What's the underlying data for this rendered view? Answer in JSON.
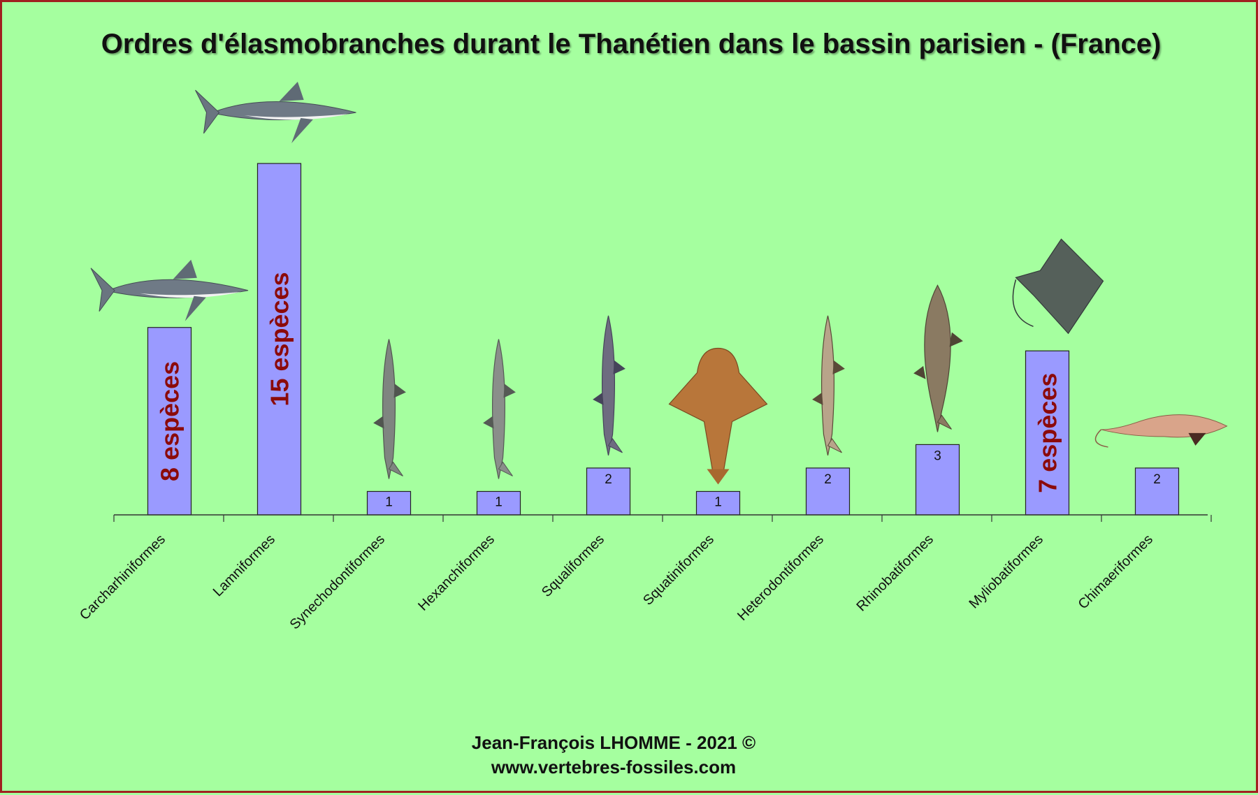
{
  "chart_data": {
    "type": "bar",
    "title": "Ordres d'élasmobranches durant le Thanétien dans le bassin parisien - (France)",
    "xlabel": "",
    "ylabel": "",
    "ylim": [
      0,
      15
    ],
    "grid": false,
    "categories": [
      "Carcharhiniformes",
      "Lamniformes",
      "Synechodontiformes",
      "Hexanchiformes",
      "Squaliformes",
      "Squatiniformes",
      "Heterodontiformes",
      "Rhinobatiformes",
      "Myliobatiformes",
      "Chimaeriformes"
    ],
    "values": [
      8,
      15,
      1,
      1,
      2,
      1,
      2,
      3,
      7,
      2
    ],
    "data_labels": [
      "8 espèces",
      "15 espèces",
      "1",
      "1",
      "2",
      "1",
      "2",
      "3",
      "7 espèces",
      "2"
    ],
    "icons": [
      "requin-carcharhiniforme",
      "requin-blanc",
      "requin-synechodontiforme",
      "requin-hexanchiforme",
      "aiguillat",
      "ange-de-mer",
      "requin-dormeur",
      "raie-guitare",
      "raie-aigle",
      "chimere"
    ]
  },
  "credit": {
    "line1": "Jean-François LHOMME  -  2021 ©",
    "line2": "www.vertebres-fossiles.com"
  },
  "colors": {
    "background": "#a5ff9f",
    "bar": "#9a9aff",
    "bar_stroke": "#222222",
    "big_label": "#8b0a0a",
    "frame": "#a02020"
  }
}
